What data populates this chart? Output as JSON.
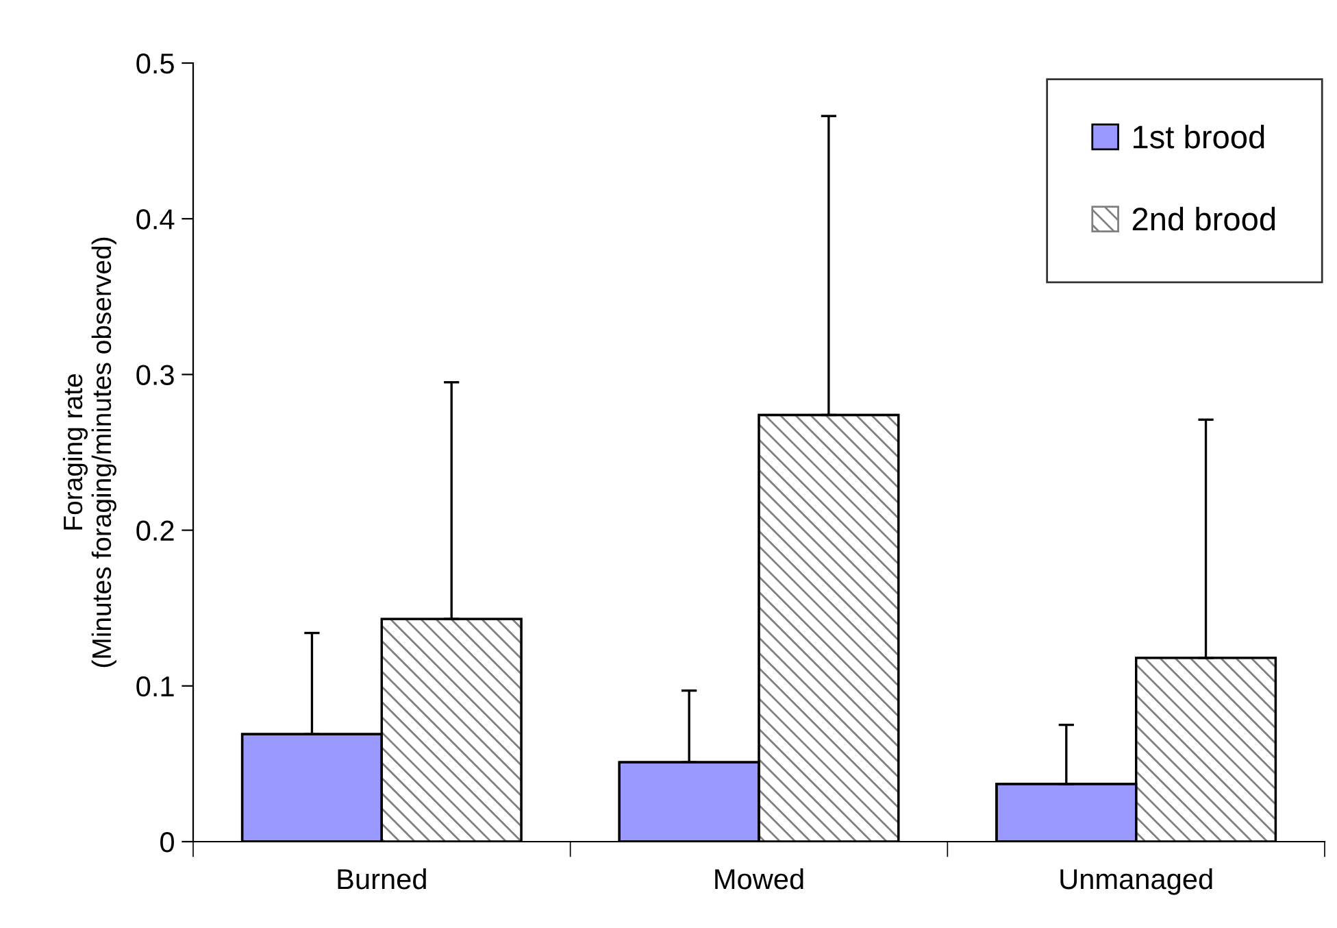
{
  "chart_data": {
    "type": "bar",
    "ylabel": "Foraging rate\n(Minutes foraging/minutes observed)",
    "categories": [
      "Burned",
      "Mowed",
      "Unmanaged"
    ],
    "series": [
      {
        "name": "1st brood",
        "color": "#9999ff",
        "values": [
          0.069,
          0.051,
          0.037
        ],
        "errors": [
          [
            0.069,
            0.134
          ],
          [
            0.051,
            0.097
          ],
          [
            0.037,
            0.075
          ]
        ]
      },
      {
        "name": "2nd brood",
        "color": "#808080",
        "values": [
          0.143,
          0.274,
          0.118
        ],
        "errors": [
          [
            0.143,
            0.295
          ],
          [
            0.274,
            0.466
          ],
          [
            0.118,
            0.271
          ]
        ]
      }
    ],
    "ylim": [
      0,
      0.5
    ],
    "yticks": [
      0,
      0.1,
      0.2,
      0.3,
      0.4,
      0.5
    ],
    "grid": false,
    "legend": "top right"
  }
}
